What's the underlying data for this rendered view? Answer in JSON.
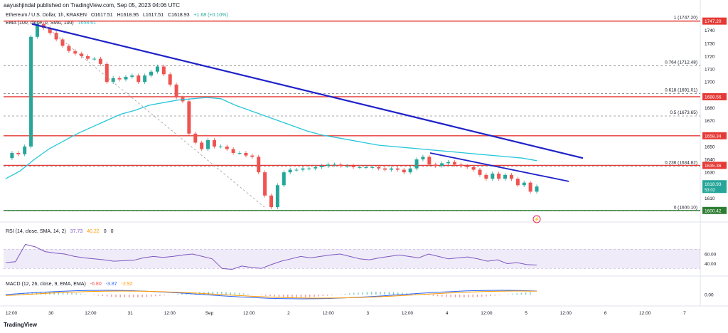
{
  "header": "aayushjindal published on TradingView.com, Sep 05, 2023 04:06 UTC",
  "price_legend": {
    "title": "Ethereum / U.S. Dollar, 1h, KRAKEN",
    "o": "O1617.51",
    "h": "H1618.95",
    "l": "L1617.51",
    "c": "C1618.93",
    "chg": "+1.68 (+0.10%)"
  },
  "ema_legend": {
    "label": "EMA (100, close, 0, SMA, 100)",
    "value": "1658.61"
  },
  "rsi_legend": {
    "label": "RSI (14, close, SMA, 14, 2)",
    "v1": "37.73",
    "v2": "40.22",
    "v3": "0",
    "v4": "0"
  },
  "macd_legend": {
    "label": "MACD (12, 26, close, 9, EMA, EMA)",
    "v1": "-6.80",
    "v2": "-3.87",
    "v3": "-2.92"
  },
  "logo": "TradingView",
  "colors": {
    "up": "#26a69a",
    "down": "#ef5350",
    "ema": "#26c6da",
    "trend": "#1e22c8",
    "hline": "#e53935",
    "support": "#2e7d32",
    "rsi": "#7e57c2",
    "macd": "#2962ff",
    "signal": "#ff9800"
  },
  "chart_data": {
    "type": "line",
    "y_axis": {
      "ticks": [
        1740,
        1730,
        1720,
        1710,
        1700,
        1690,
        1680,
        1670,
        1660,
        1650,
        1640,
        1630,
        1620,
        1610,
        1600
      ],
      "range": [
        1597,
        1747
      ]
    },
    "x_axis": {
      "ticks": [
        "12:00",
        "30",
        "12:00",
        "31",
        "12:00",
        "Sep",
        "12:00",
        "2",
        "12:00",
        "3",
        "12:00",
        "4",
        "12:00",
        "5",
        "12:00",
        "6",
        "12:00",
        "7"
      ]
    },
    "price_path": [
      1641,
      1645,
      1644,
      1650,
      1735,
      1745,
      1742,
      1738,
      1733,
      1728,
      1724,
      1722,
      1720,
      1718,
      1718,
      1714,
      1700,
      1703,
      1702,
      1704,
      1705,
      1700,
      1705,
      1708,
      1712,
      1706,
      1698,
      1688,
      1685,
      1660,
      1653,
      1648,
      1655,
      1650,
      1650,
      1648,
      1645,
      1645,
      1643,
      1642,
      1630,
      1612,
      1603,
      1620,
      1630,
      1632,
      1632,
      1633,
      1633,
      1634,
      1635,
      1636,
      1636,
      1635,
      1635,
      1634,
      1634,
      1634,
      1634,
      1633,
      1632,
      1633,
      1632,
      1630,
      1633,
      1640,
      1642,
      1636,
      1635,
      1637,
      1638,
      1636,
      1635,
      1634,
      1632,
      1628,
      1625,
      1629,
      1625,
      1628,
      1625,
      1620,
      1622,
      1615,
      1619
    ],
    "ema_path": [
      1625,
      1631,
      1640,
      1648,
      1654,
      1660,
      1665,
      1670,
      1675,
      1678,
      1682,
      1684,
      1686,
      1687,
      1688,
      1687,
      1682,
      1678,
      1674,
      1670,
      1666,
      1662,
      1659,
      1657,
      1655,
      1653,
      1651,
      1650,
      1649,
      1648,
      1647,
      1646,
      1645,
      1644,
      1643,
      1642,
      1641,
      1639
    ],
    "horizontal_lines": [
      {
        "value": 1747.2,
        "label": "1747.20",
        "color": "#e53935"
      },
      {
        "value": 1688.56,
        "label": "1688.56",
        "color": "#e53935"
      },
      {
        "value": 1658.34,
        "label": "1658.34",
        "color": "#e53935"
      },
      {
        "value": 1635.36,
        "label": "1635.36",
        "color": "#e53935"
      },
      {
        "value": 1600.42,
        "label": "1600.42",
        "color": "#2e7d32"
      }
    ],
    "fib_levels": [
      {
        "ratio": "1",
        "value": 1747.2,
        "label": "1 (1747.20)"
      },
      {
        "ratio": "0.764",
        "value": 1712.48,
        "label": "0.764 (1712.48)"
      },
      {
        "ratio": "0.618",
        "value": 1691.01,
        "label": "0.618 (1691.01)"
      },
      {
        "ratio": "0.5",
        "value": 1673.65,
        "label": "0.5 (1673.65)"
      },
      {
        "ratio": "0.236",
        "value": 1634.82,
        "label": "0.236 (1634.82)"
      },
      {
        "ratio": "0",
        "value": 1600.1,
        "label": "0 (1600.10)"
      }
    ],
    "current_price": {
      "value": 1618.93,
      "label": "1618.93",
      "countdown": "53:02"
    },
    "rsi": {
      "ticks": [
        "60.00",
        "40.00"
      ],
      "values": [
        42,
        44,
        80,
        75,
        65,
        62,
        60,
        55,
        52,
        50,
        48,
        45,
        46,
        47,
        52,
        55,
        53,
        55,
        58,
        60,
        55,
        50,
        30,
        28,
        35,
        32,
        30,
        38,
        45,
        50,
        55,
        52,
        55,
        58,
        60,
        55,
        50,
        48,
        52,
        55,
        58,
        55,
        52,
        60,
        55,
        50,
        52,
        54,
        50,
        45,
        48,
        40,
        42,
        38,
        37
      ]
    },
    "macd": {
      "ticks": [
        "0.00"
      ]
    }
  }
}
